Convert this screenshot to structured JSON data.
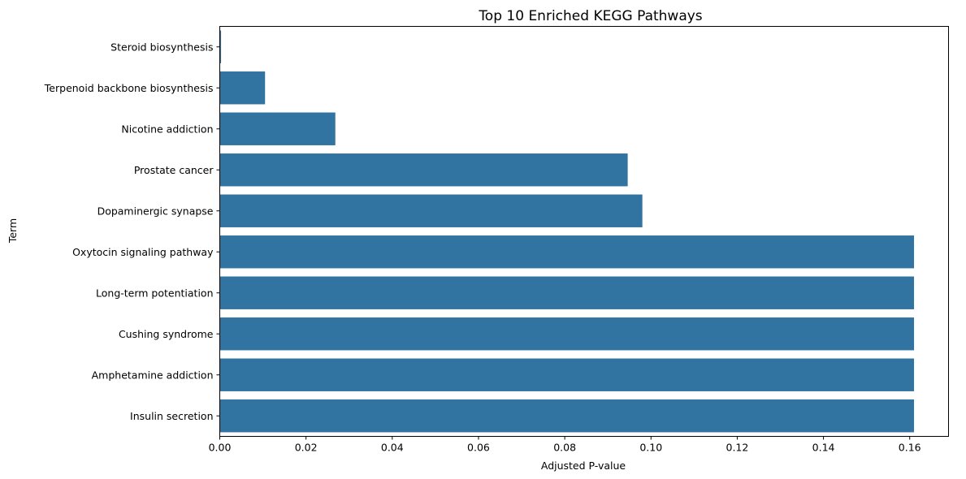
{
  "chart_data": {
    "type": "bar",
    "orientation": "horizontal",
    "title": "Top 10 Enriched KEGG Pathways",
    "xlabel": "Adjusted P-value",
    "ylabel": "Term",
    "xlim": [
      0,
      0.169
    ],
    "xticks": [
      "0.00",
      "0.02",
      "0.04",
      "0.06",
      "0.08",
      "0.10",
      "0.12",
      "0.14",
      "0.16"
    ],
    "categories": [
      "Steroid biosynthesis",
      "Terpenoid backbone biosynthesis",
      "Nicotine addiction",
      "Prostate cancer",
      "Dopaminergic synapse",
      "Oxytocin signaling pathway",
      "Long-term potentiation",
      "Cushing syndrome",
      "Amphetamine addiction",
      "Insulin secretion"
    ],
    "values": [
      0.0003,
      0.0105,
      0.0268,
      0.0946,
      0.098,
      0.161,
      0.161,
      0.161,
      0.161,
      0.161
    ],
    "bar_color": "#3274a1",
    "grid": false
  }
}
